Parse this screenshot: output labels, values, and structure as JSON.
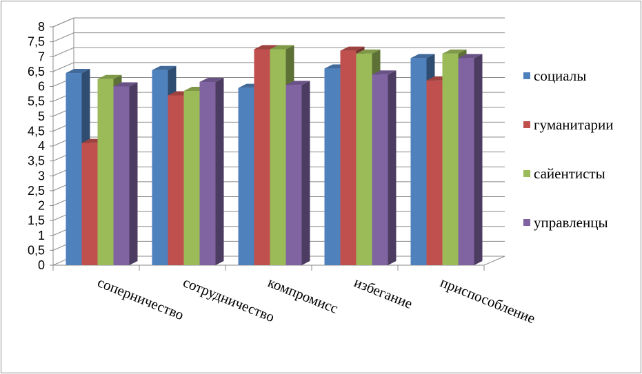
{
  "chart_data": {
    "type": "bar",
    "categories": [
      "соперничество",
      "сотрудничество",
      "компромисс",
      "избегание",
      "приспособление"
    ],
    "series": [
      {
        "name": "социалы",
        "values": [
          6.45,
          6.55,
          5.95,
          6.6,
          6.95
        ],
        "color": "#4F81BD"
      },
      {
        "name": "гуманитарии",
        "values": [
          4.1,
          5.7,
          7.25,
          7.2,
          6.2
        ],
        "color": "#C0504D"
      },
      {
        "name": "сайентисты",
        "values": [
          6.25,
          5.85,
          7.25,
          7.1,
          7.1
        ],
        "color": "#9BBB59"
      },
      {
        "name": "управленцы",
        "values": [
          6.0,
          6.15,
          6.05,
          6.4,
          6.95
        ],
        "color": "#8064A2"
      }
    ],
    "ylim": [
      0,
      8
    ],
    "yticks": [
      "0",
      "0,5",
      "1",
      "1,5",
      "2",
      "2,5",
      "3",
      "3,5",
      "4",
      "4,5",
      "5",
      "5,5",
      "6",
      "6,5",
      "7",
      "7,5",
      "8"
    ],
    "grid": true,
    "legend": "right",
    "title": "",
    "xlabel": "",
    "ylabel": ""
  }
}
